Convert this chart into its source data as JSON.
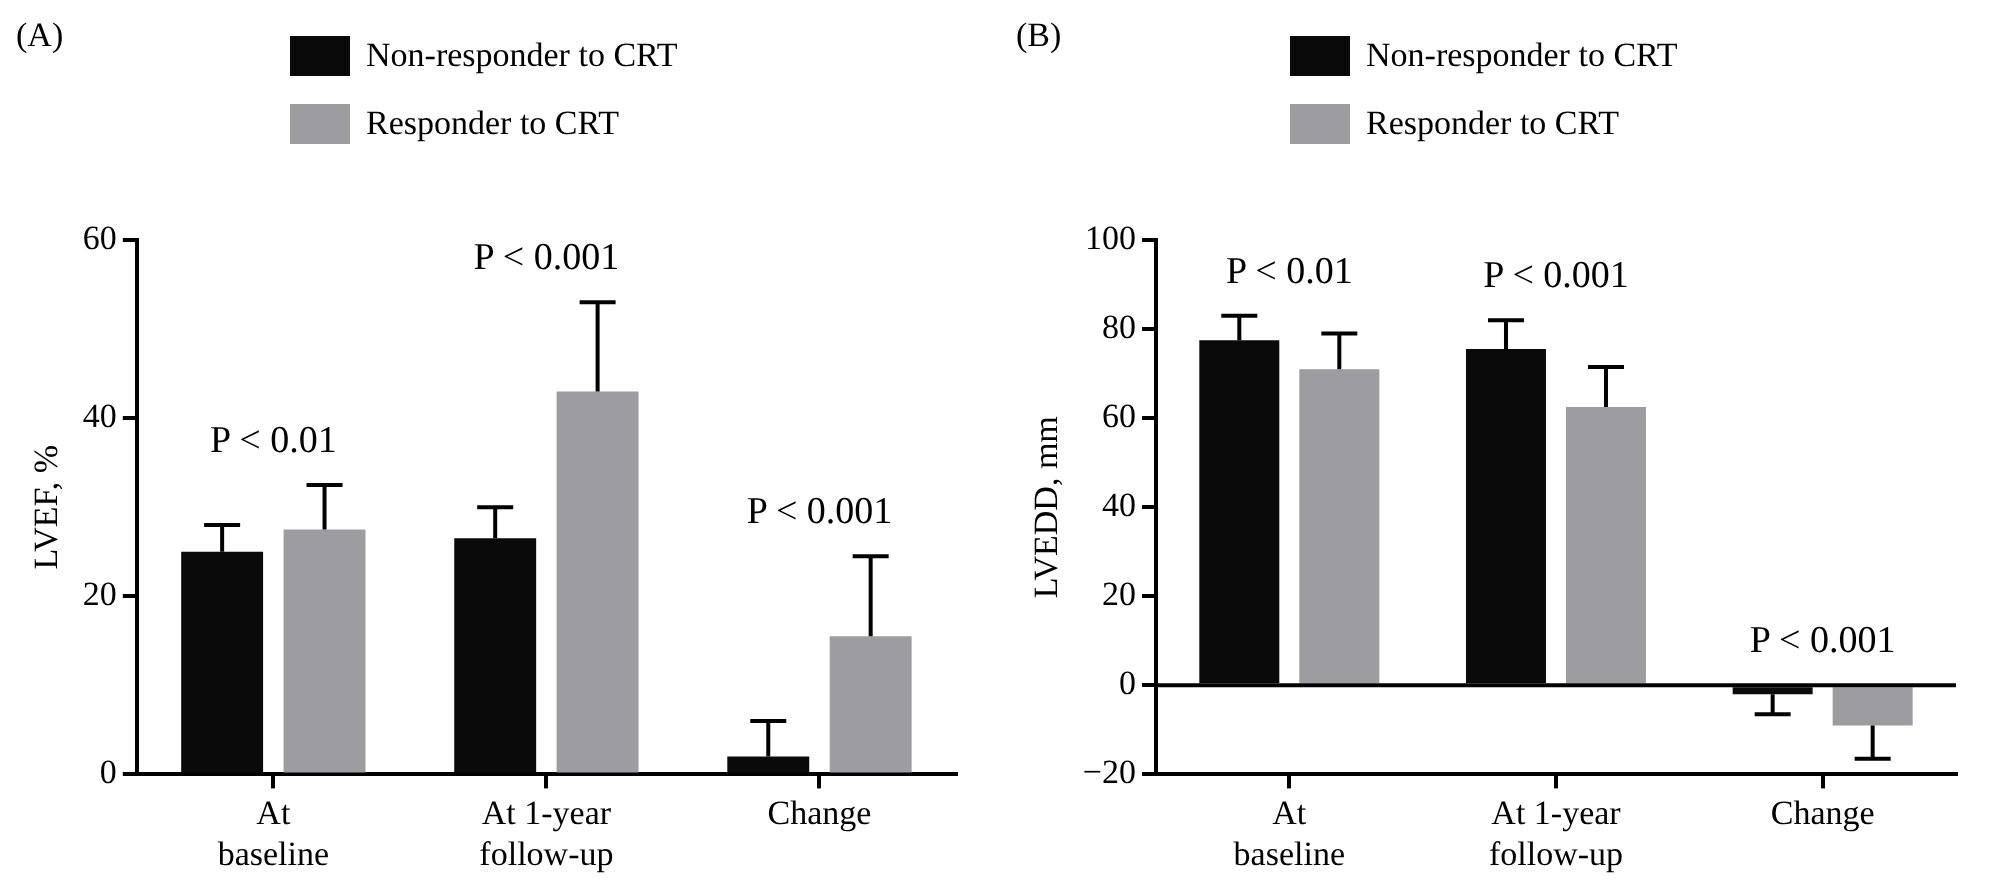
{
  "chart_data": [
    {
      "type": "bar",
      "title": "(A)",
      "ylabel": "LVEF, %",
      "categories": [
        "At baseline",
        "At 1-year follow-up",
        "Change"
      ],
      "series": [
        {
          "name": "Non-responder to CRT",
          "color": "#0a0a0a",
          "values": [
            25,
            26.5,
            2
          ],
          "errors": [
            [
              25,
              28
            ],
            [
              26.5,
              30
            ],
            [
              2,
              6
            ]
          ]
        },
        {
          "name": "Responder to CRT",
          "color": "#9d9ca1",
          "values": [
            27.5,
            43,
            15.5
          ],
          "errors": [
            [
              27.5,
              32.5
            ],
            [
              43,
              53
            ],
            [
              15.5,
              24.5
            ]
          ]
        }
      ],
      "ylim": [
        0,
        60
      ],
      "yticks": [
        0,
        20,
        40,
        60
      ],
      "legend": "top",
      "annotations": [
        "P < 0.01",
        "P < 0.001",
        "P < 0.001"
      ]
    },
    {
      "type": "bar",
      "title": "(B)",
      "ylabel": "LVEDD, mm",
      "categories": [
        "At baseline",
        "At 1-year follow-up",
        "Change"
      ],
      "series": [
        {
          "name": "Non-responder to CRT",
          "color": "#0a0a0a",
          "values": [
            77.5,
            75.5,
            -2
          ],
          "errors": [
            [
              77.5,
              83
            ],
            [
              75.5,
              82
            ],
            [
              -6.5,
              -2
            ]
          ]
        },
        {
          "name": "Responder to CRT",
          "color": "#9d9ca1",
          "values": [
            71,
            62.5,
            -9
          ],
          "errors": [
            [
              71,
              79
            ],
            [
              62.5,
              71.5
            ],
            [
              -16.5,
              -9
            ]
          ]
        }
      ],
      "ylim": [
        -20,
        100
      ],
      "yticks": [
        {
          "value": -20,
          "label": "−20"
        },
        0,
        20,
        40,
        60,
        80,
        100
      ],
      "legend": "top",
      "ref_lines": [
        {
          "axis": "y",
          "value": 0
        }
      ],
      "annotations": [
        "P < 0.01",
        "P < 0.001",
        "P < 0.001"
      ]
    }
  ]
}
